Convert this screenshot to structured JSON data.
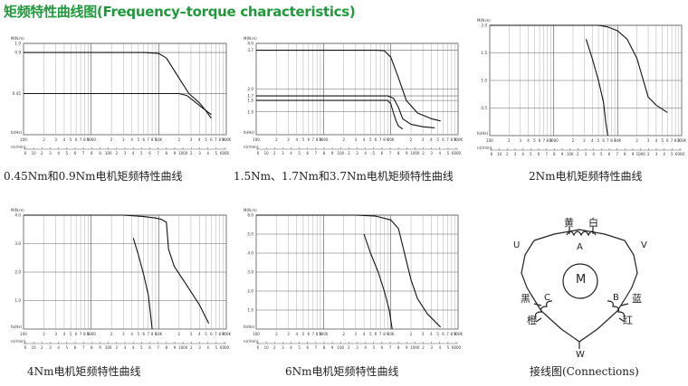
{
  "title": "矩频特性曲线图(Frequency–torque characteristics)",
  "axis_text": {
    "y_unit": "M(N.m)",
    "x_unit": "fo(Hz)",
    "x2_unit": "n(r/min)",
    "x_ticks": [
      "100",
      "2",
      "3",
      "4",
      "5",
      "6",
      "7",
      "8",
      "9",
      "1000",
      "2",
      "3",
      "4",
      "5",
      "6",
      "7",
      "8",
      "9",
      "10K",
      "2",
      "3",
      "4",
      "5",
      "6",
      "7",
      "8",
      "9",
      "100K"
    ],
    "rpm_ticks": [
      "6",
      "10",
      "2",
      "3",
      "4",
      "5",
      "6",
      "7",
      "8",
      "9",
      "100",
      "2",
      "3",
      "4",
      "5",
      "6",
      "7",
      "8",
      "9",
      "1000",
      "2",
      "3",
      "4",
      "5",
      "6000"
    ]
  },
  "chart_data": [
    {
      "type": "line",
      "caption": "0.45Nm和0.9Nm电机矩频特性曲线",
      "xscale": "log",
      "xlim": [
        100,
        100000
      ],
      "ylim": [
        0,
        1.0
      ],
      "yticks": [
        {
          "v": 1.0,
          "t": "1.0"
        },
        {
          "v": 0.9,
          "t": "0.9"
        },
        {
          "v": 0.45,
          "t": "0.45"
        }
      ],
      "series": [
        {
          "x": [
            100,
            3000,
            6000,
            10000,
            13000,
            20000,
            28000,
            40000,
            50000,
            60000
          ],
          "y": [
            0.9,
            0.9,
            0.9,
            0.89,
            0.84,
            0.62,
            0.45,
            0.35,
            0.26,
            0.18
          ]
        },
        {
          "x": [
            100,
            10000,
            20000,
            26000,
            33000,
            45000,
            60000
          ],
          "y": [
            0.45,
            0.45,
            0.45,
            0.43,
            0.37,
            0.29,
            0.22
          ]
        }
      ]
    },
    {
      "type": "line",
      "caption": "1.5Nm、1.7Nm和3.7Nm电机矩频特性曲线",
      "xscale": "log",
      "xlim": [
        100,
        100000
      ],
      "ylim": [
        0,
        4.0
      ],
      "yticks": [
        {
          "v": 4.0,
          "t": "4.0"
        },
        {
          "v": 3.7,
          "t": "3.7"
        },
        {
          "v": 2.0,
          "t": "2.0"
        },
        {
          "v": 1.7,
          "t": "1.7"
        },
        {
          "v": 1.5,
          "t": "1.5"
        },
        {
          "v": 1.0,
          "t": "1.0"
        }
      ],
      "series": [
        {
          "x": [
            100,
            4000,
            6000,
            8000,
            10000,
            13000,
            17000,
            25000,
            40000,
            55000
          ],
          "y": [
            3.7,
            3.7,
            3.7,
            3.68,
            3.4,
            2.5,
            1.5,
            0.95,
            0.7,
            0.6
          ]
        },
        {
          "x": [
            100,
            5000,
            9000,
            11000,
            13000,
            15000,
            20000,
            30000,
            45000
          ],
          "y": [
            1.7,
            1.7,
            1.7,
            1.6,
            1.2,
            0.7,
            0.45,
            0.35,
            0.3
          ]
        },
        {
          "x": [
            100,
            6000,
            9000,
            10000,
            11000,
            12000,
            13000,
            15000
          ],
          "y": [
            1.5,
            1.5,
            1.5,
            1.35,
            0.95,
            0.6,
            0.38,
            0.25
          ]
        }
      ]
    },
    {
      "type": "line",
      "caption": "2Nm电机矩频特性曲线",
      "xscale": "log",
      "xlim": [
        100,
        100000
      ],
      "ylim": [
        0,
        2.0
      ],
      "yticks": [
        {
          "v": 2.0,
          "t": "2.0"
        },
        {
          "v": 1.5,
          "t": "1.5"
        },
        {
          "v": 1.0,
          "t": "1.0"
        },
        {
          "v": 0.5,
          "t": "0.5"
        }
      ],
      "series": [
        {
          "x": [
            100,
            5000,
            7000,
            10000,
            14000,
            20000,
            30000,
            40000,
            60000
          ],
          "y": [
            2.0,
            2.0,
            1.97,
            1.9,
            1.75,
            1.4,
            0.7,
            0.55,
            0.42
          ]
        },
        {
          "x": [
            3200,
            4000,
            5000,
            6000,
            6500,
            7000
          ],
          "y": [
            1.75,
            1.4,
            1.0,
            0.6,
            0.25,
            0.0
          ]
        }
      ]
    },
    {
      "type": "line",
      "caption": "4Nm电机矩频特性曲线",
      "xscale": "log",
      "xlim": [
        100,
        100000
      ],
      "ylim": [
        0,
        4.0
      ],
      "yticks": [
        {
          "v": 4.0,
          "t": "4.0"
        },
        {
          "v": 3.0,
          "t": "3.0"
        },
        {
          "v": 2.0,
          "t": "2.0"
        },
        {
          "v": 1.0,
          "t": "1.0"
        }
      ],
      "series": [
        {
          "x": [
            100,
            3000,
            6000,
            9000,
            11000,
            13000,
            14000,
            17000,
            25000,
            40000,
            55000
          ],
          "y": [
            4.0,
            4.0,
            3.95,
            3.9,
            3.85,
            3.75,
            2.8,
            2.2,
            1.6,
            0.85,
            0.2
          ]
        },
        {
          "x": [
            4200,
            5000,
            6000,
            7000,
            7500,
            8000
          ],
          "y": [
            3.2,
            2.6,
            1.9,
            1.2,
            0.6,
            0.0
          ]
        }
      ]
    },
    {
      "type": "line",
      "caption": "6Nm电机矩频特性曲线",
      "xscale": "log",
      "xlim": [
        100,
        100000
      ],
      "ylim": [
        0,
        6.0
      ],
      "yticks": [
        {
          "v": 6.0,
          "t": "6.0"
        },
        {
          "v": 5.0,
          "t": "5.0"
        },
        {
          "v": 4.0,
          "t": "4.0"
        },
        {
          "v": 3.0,
          "t": "3.0"
        },
        {
          "v": 2.0,
          "t": "2.0"
        },
        {
          "v": 1.0,
          "t": "1.0"
        }
      ],
      "series": [
        {
          "x": [
            100,
            3000,
            6000,
            10000,
            13000,
            16000,
            20000,
            25000,
            35000,
            55000
          ],
          "y": [
            6.0,
            6.0,
            5.95,
            5.75,
            5.3,
            4.0,
            2.6,
            1.6,
            0.8,
            0.1
          ]
        },
        {
          "x": [
            4000,
            5000,
            6500,
            8000,
            9500,
            10500
          ],
          "y": [
            5.0,
            4.0,
            3.0,
            2.0,
            1.0,
            0.0
          ]
        }
      ]
    }
  ],
  "connections": {
    "caption": "接线图(Connections)",
    "motor_label": "M",
    "labels": {
      "yellow": "黄",
      "white": "白",
      "u": "U",
      "v": "V",
      "black": "黑",
      "blue": "蓝",
      "orange": "橙",
      "red": "红",
      "w": "W",
      "a": "A",
      "b": "B",
      "c": "C"
    }
  }
}
